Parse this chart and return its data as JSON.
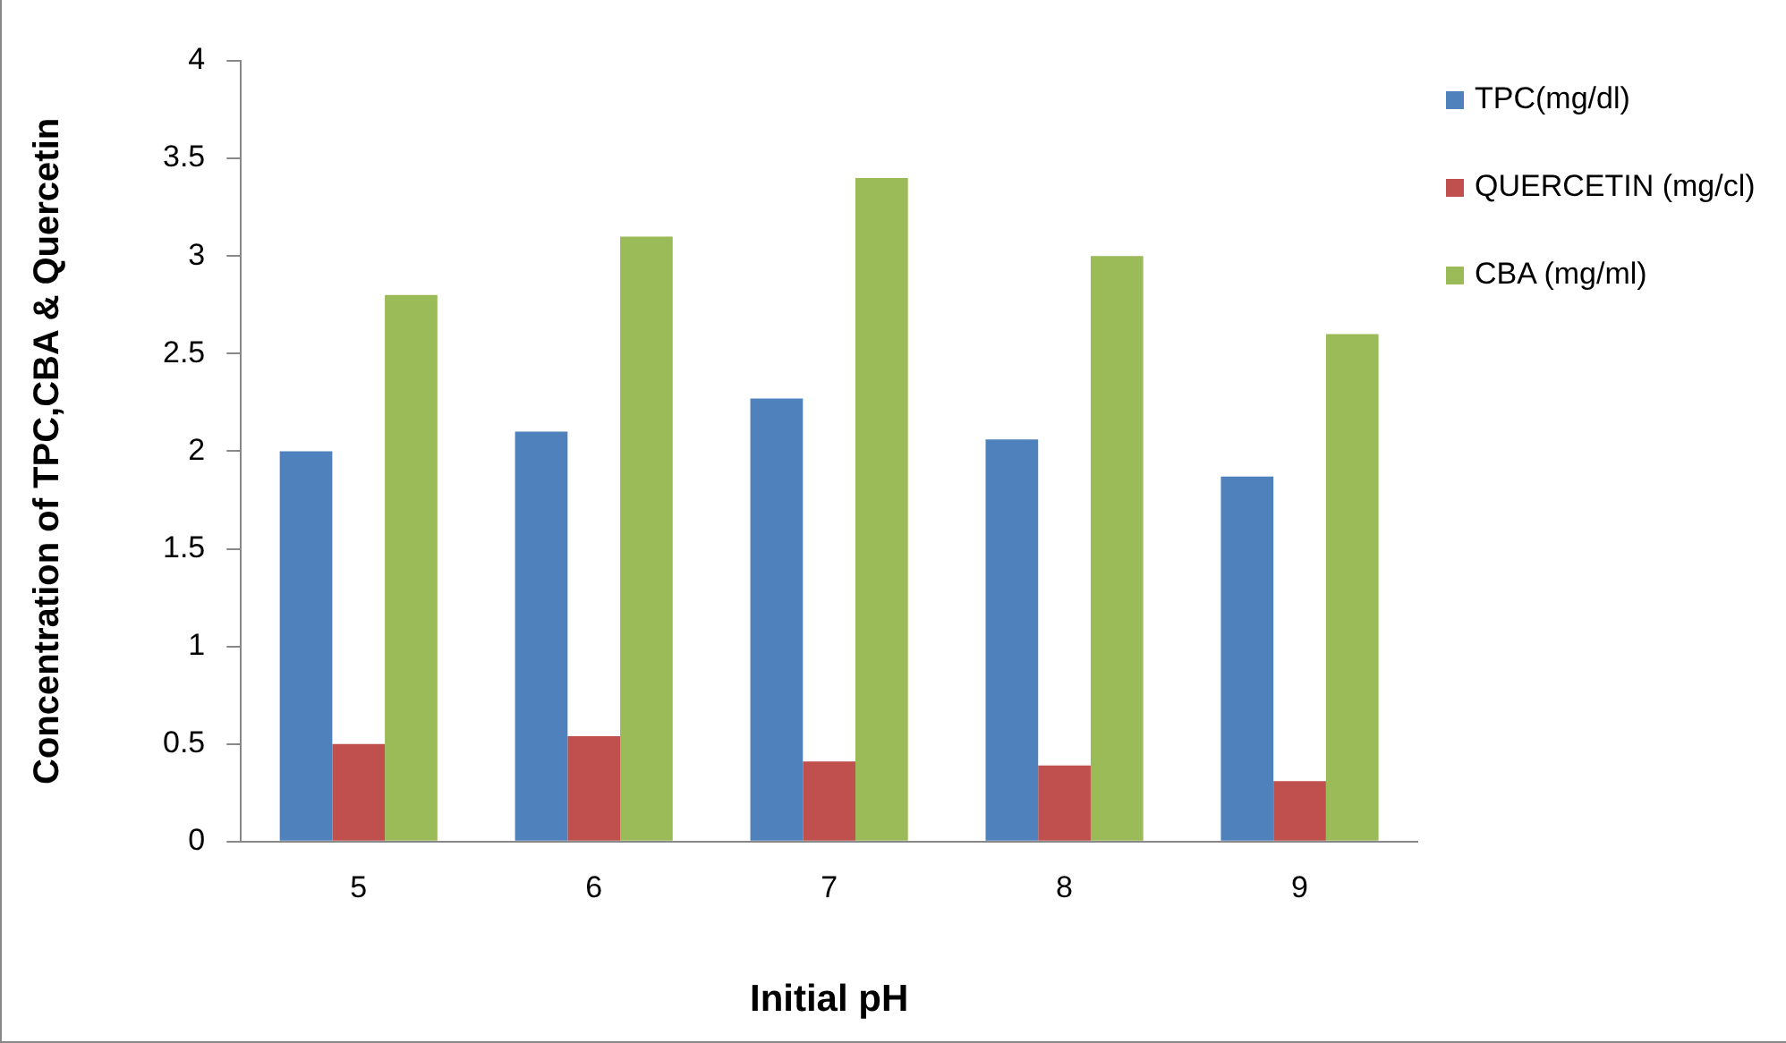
{
  "chart_data": {
    "type": "bar",
    "xlabel": "Initial pH",
    "ylabel": "Concentration of TPC,CBA & Quercetin",
    "categories": [
      "5",
      "6",
      "7",
      "8",
      "9"
    ],
    "series": [
      {
        "name": "TPC(mg/dl)",
        "color": "#4f81bd",
        "values": [
          2.0,
          2.1,
          2.27,
          2.06,
          1.87
        ]
      },
      {
        "name": "QUERCETIN (mg/cl)",
        "color": "#c0504d",
        "values": [
          0.5,
          0.54,
          0.41,
          0.39,
          0.31
        ]
      },
      {
        "name": "CBA (mg/ml)",
        "color": "#9bbb59",
        "values": [
          2.8,
          3.1,
          3.4,
          3.0,
          2.6
        ]
      }
    ],
    "ylim": [
      0,
      4
    ],
    "yticks": [
      0,
      0.5,
      1,
      1.5,
      2,
      2.5,
      3,
      3.5,
      4
    ],
    "grid": false,
    "legend": "top right"
  }
}
